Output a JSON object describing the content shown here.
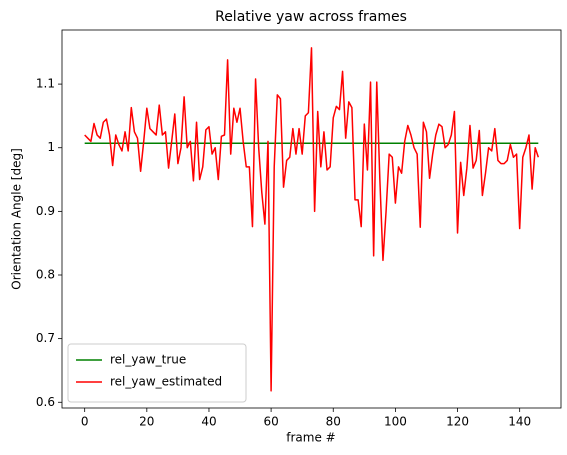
{
  "chart_data": {
    "type": "line",
    "title": "Relative yaw across frames",
    "x_label": "frame #",
    "y_label": "Orientation Angle [deg]",
    "x": [
      0,
      1,
      2,
      3,
      4,
      5,
      6,
      7,
      8,
      9,
      10,
      11,
      12,
      13,
      14,
      15,
      16,
      17,
      18,
      19,
      20,
      21,
      22,
      23,
      24,
      25,
      26,
      27,
      28,
      29,
      30,
      31,
      32,
      33,
      34,
      35,
      36,
      37,
      38,
      39,
      40,
      41,
      42,
      43,
      44,
      45,
      46,
      47,
      48,
      49,
      50,
      51,
      52,
      53,
      54,
      55,
      56,
      57,
      58,
      59,
      60,
      61,
      62,
      63,
      64,
      65,
      66,
      67,
      68,
      69,
      70,
      71,
      72,
      73,
      74,
      75,
      76,
      77,
      78,
      79,
      80,
      81,
      82,
      83,
      84,
      85,
      86,
      87,
      88,
      89,
      90,
      91,
      92,
      93,
      94,
      95,
      96,
      97,
      98,
      99,
      100,
      101,
      102,
      103,
      104,
      105,
      106,
      107,
      108,
      109,
      110,
      111,
      112,
      113,
      114,
      115,
      116,
      117,
      118,
      119,
      120,
      121,
      122,
      123,
      124,
      125,
      126,
      127,
      128,
      129,
      130,
      131,
      132,
      133,
      134,
      135,
      136,
      137,
      138,
      139,
      140,
      141,
      142,
      143,
      144,
      145,
      146
    ],
    "series": [
      {
        "name": "rel_yaw_true",
        "color": "#008000",
        "values": [
          1.007,
          1.007,
          1.007,
          1.007,
          1.007,
          1.007,
          1.007,
          1.007,
          1.007,
          1.007,
          1.007,
          1.007,
          1.007,
          1.007,
          1.007,
          1.007,
          1.007,
          1.007,
          1.007,
          1.007,
          1.007,
          1.007,
          1.007,
          1.007,
          1.007,
          1.007,
          1.007,
          1.007,
          1.007,
          1.007,
          1.007,
          1.007,
          1.007,
          1.007,
          1.007,
          1.007,
          1.007,
          1.007,
          1.007,
          1.007,
          1.007,
          1.007,
          1.007,
          1.007,
          1.007,
          1.007,
          1.007,
          1.007,
          1.007,
          1.007,
          1.007,
          1.007,
          1.007,
          1.007,
          1.007,
          1.007,
          1.007,
          1.007,
          1.007,
          1.007,
          1.007,
          1.007,
          1.007,
          1.007,
          1.007,
          1.007,
          1.007,
          1.007,
          1.007,
          1.007,
          1.007,
          1.007,
          1.007,
          1.007,
          1.007,
          1.007,
          1.007,
          1.007,
          1.007,
          1.007,
          1.007,
          1.007,
          1.007,
          1.007,
          1.007,
          1.007,
          1.007,
          1.007,
          1.007,
          1.007,
          1.007,
          1.007,
          1.007,
          1.007,
          1.007,
          1.007,
          1.007,
          1.007,
          1.007,
          1.007,
          1.007,
          1.007,
          1.007,
          1.007,
          1.007,
          1.007,
          1.007,
          1.007,
          1.007,
          1.007,
          1.007,
          1.007,
          1.007,
          1.007,
          1.007,
          1.007,
          1.007,
          1.007,
          1.007,
          1.007,
          1.007,
          1.007,
          1.007,
          1.007,
          1.007,
          1.007,
          1.007,
          1.007,
          1.007,
          1.007,
          1.007,
          1.007,
          1.007,
          1.007,
          1.007,
          1.007,
          1.007,
          1.007,
          1.007,
          1.007,
          1.007,
          1.007,
          1.007,
          1.007,
          1.007,
          1.007,
          1.007
        ]
      },
      {
        "name": "rel_yaw_estimated",
        "color": "#ff0000",
        "values": [
          1.02,
          1.015,
          1.01,
          1.038,
          1.02,
          1.015,
          1.04,
          1.045,
          1.02,
          0.972,
          1.02,
          1.005,
          0.995,
          1.025,
          0.995,
          1.063,
          1.025,
          1.015,
          0.963,
          1.01,
          1.062,
          1.03,
          1.025,
          1.02,
          1.067,
          1.02,
          1.025,
          0.968,
          1.01,
          1.053,
          0.975,
          1.0,
          1.08,
          1.0,
          1.01,
          0.948,
          1.04,
          0.95,
          0.97,
          1.028,
          1.033,
          0.99,
          1.0,
          0.95,
          1.018,
          1.02,
          1.138,
          0.99,
          1.062,
          1.04,
          1.062,
          1.01,
          0.97,
          0.97,
          0.876,
          1.108,
          1.0,
          0.93,
          0.88,
          1.01,
          0.618,
          0.97,
          1.083,
          1.077,
          0.938,
          0.98,
          0.985,
          1.03,
          0.99,
          1.03,
          0.99,
          1.05,
          1.055,
          1.157,
          0.9,
          1.057,
          0.97,
          1.025,
          0.965,
          0.97,
          1.047,
          1.065,
          1.06,
          1.12,
          1.015,
          1.072,
          1.063,
          0.918,
          0.918,
          0.876,
          1.037,
          0.965,
          1.103,
          0.83,
          1.103,
          0.95,
          0.823,
          0.9,
          0.99,
          0.985,
          0.913,
          0.97,
          0.96,
          1.01,
          1.035,
          1.02,
          1.0,
          0.99,
          0.875,
          1.04,
          1.025,
          0.952,
          0.99,
          1.02,
          1.037,
          1.033,
          1.0,
          1.005,
          1.02,
          1.057,
          0.866,
          0.977,
          0.925,
          0.968,
          1.035,
          0.968,
          0.98,
          1.027,
          0.925,
          0.96,
          1.0,
          0.995,
          1.03,
          0.98,
          0.975,
          0.975,
          0.98,
          1.005,
          0.985,
          0.99,
          0.873,
          0.985,
          1.0,
          1.02,
          0.935,
          1.0,
          0.985
        ]
      }
    ],
    "xlim": [
      -7.3,
      153.3
    ],
    "ylim": [
      0.591,
      1.185
    ],
    "xticks": [
      0,
      20,
      40,
      60,
      80,
      100,
      120,
      140
    ],
    "yticks": [
      0.6,
      0.7,
      0.8,
      0.9,
      1.0,
      1.1
    ],
    "legend": "lower left"
  }
}
